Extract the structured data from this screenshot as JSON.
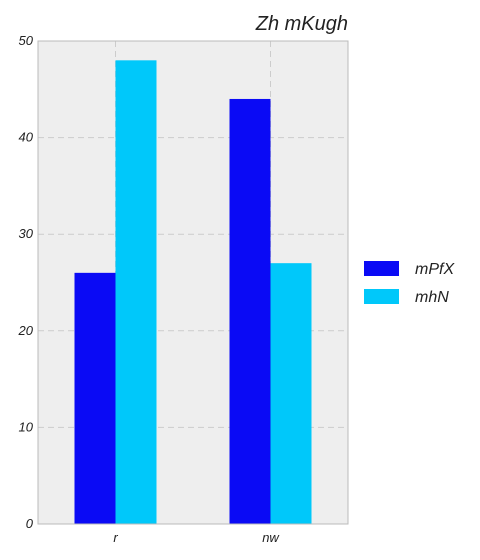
{
  "chart_data": {
    "type": "bar",
    "title": "Zh mKugh",
    "xlabel": "",
    "ylabel": "",
    "categories": [
      "r",
      "nw"
    ],
    "series": [
      {
        "name": "mPfX",
        "values": [
          26,
          44
        ],
        "color": "#0a0af5"
      },
      {
        "name": "mhN",
        "values": [
          48,
          27
        ],
        "color": "#00c8fa"
      }
    ],
    "ylim": [
      0,
      50
    ],
    "yticks": [
      0,
      10,
      20,
      30,
      40,
      50
    ],
    "grid": true,
    "legend_position": "right",
    "colors": {
      "plot_background": "#eeeeee",
      "grid": "#cccccc",
      "frame": "#bbbbbb"
    }
  }
}
